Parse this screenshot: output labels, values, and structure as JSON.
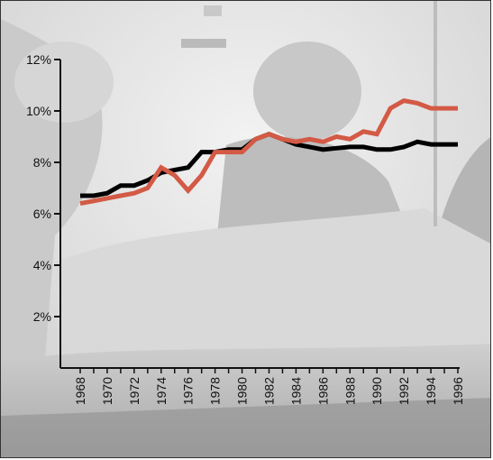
{
  "chart_data": {
    "type": "line",
    "x": [
      1968,
      1969,
      1970,
      1971,
      1972,
      1973,
      1974,
      1975,
      1976,
      1977,
      1978,
      1979,
      1980,
      1981,
      1982,
      1983,
      1984,
      1985,
      1986,
      1987,
      1988,
      1989,
      1990,
      1991,
      1992,
      1993,
      1994,
      1995,
      1996
    ],
    "series": [
      {
        "color": "#000000",
        "values": [
          6.7,
          6.7,
          6.8,
          7.1,
          7.1,
          7.3,
          7.6,
          7.7,
          7.8,
          8.4,
          8.4,
          8.5,
          8.5,
          8.9,
          9.1,
          8.9,
          8.7,
          8.6,
          8.5,
          8.55,
          8.6,
          8.6,
          8.5,
          8.5,
          8.6,
          8.8,
          8.7,
          8.7,
          8.7
        ]
      },
      {
        "color": "#d35a45",
        "values": [
          6.4,
          6.5,
          6.6,
          6.7,
          6.8,
          7.0,
          7.8,
          7.5,
          6.9,
          7.5,
          8.4,
          8.4,
          8.4,
          8.9,
          9.1,
          8.9,
          8.8,
          8.9,
          8.8,
          9.0,
          8.9,
          9.2,
          9.1,
          10.1,
          10.4,
          10.3,
          10.1,
          10.1,
          10.1
        ]
      }
    ],
    "yticks": [
      "2%",
      "4%",
      "6%",
      "8%",
      "10%",
      "12%"
    ],
    "ytick_values": [
      2,
      4,
      6,
      8,
      10,
      12
    ],
    "xticks": [
      "1968",
      "1970",
      "1972",
      "1974",
      "1976",
      "1978",
      "1980",
      "1982",
      "1984",
      "1986",
      "1988",
      "1990",
      "1992",
      "1994",
      "1996"
    ],
    "xtick_values": [
      1968,
      1970,
      1972,
      1974,
      1976,
      1978,
      1980,
      1982,
      1984,
      1986,
      1988,
      1990,
      1992,
      1994,
      1996
    ],
    "xlim": [
      1968,
      1996
    ],
    "ylim": [
      0,
      12
    ],
    "title": "",
    "xlabel": "",
    "ylabel": "",
    "grid": false,
    "legend": "none",
    "background": "grayscale operating-room photograph"
  }
}
